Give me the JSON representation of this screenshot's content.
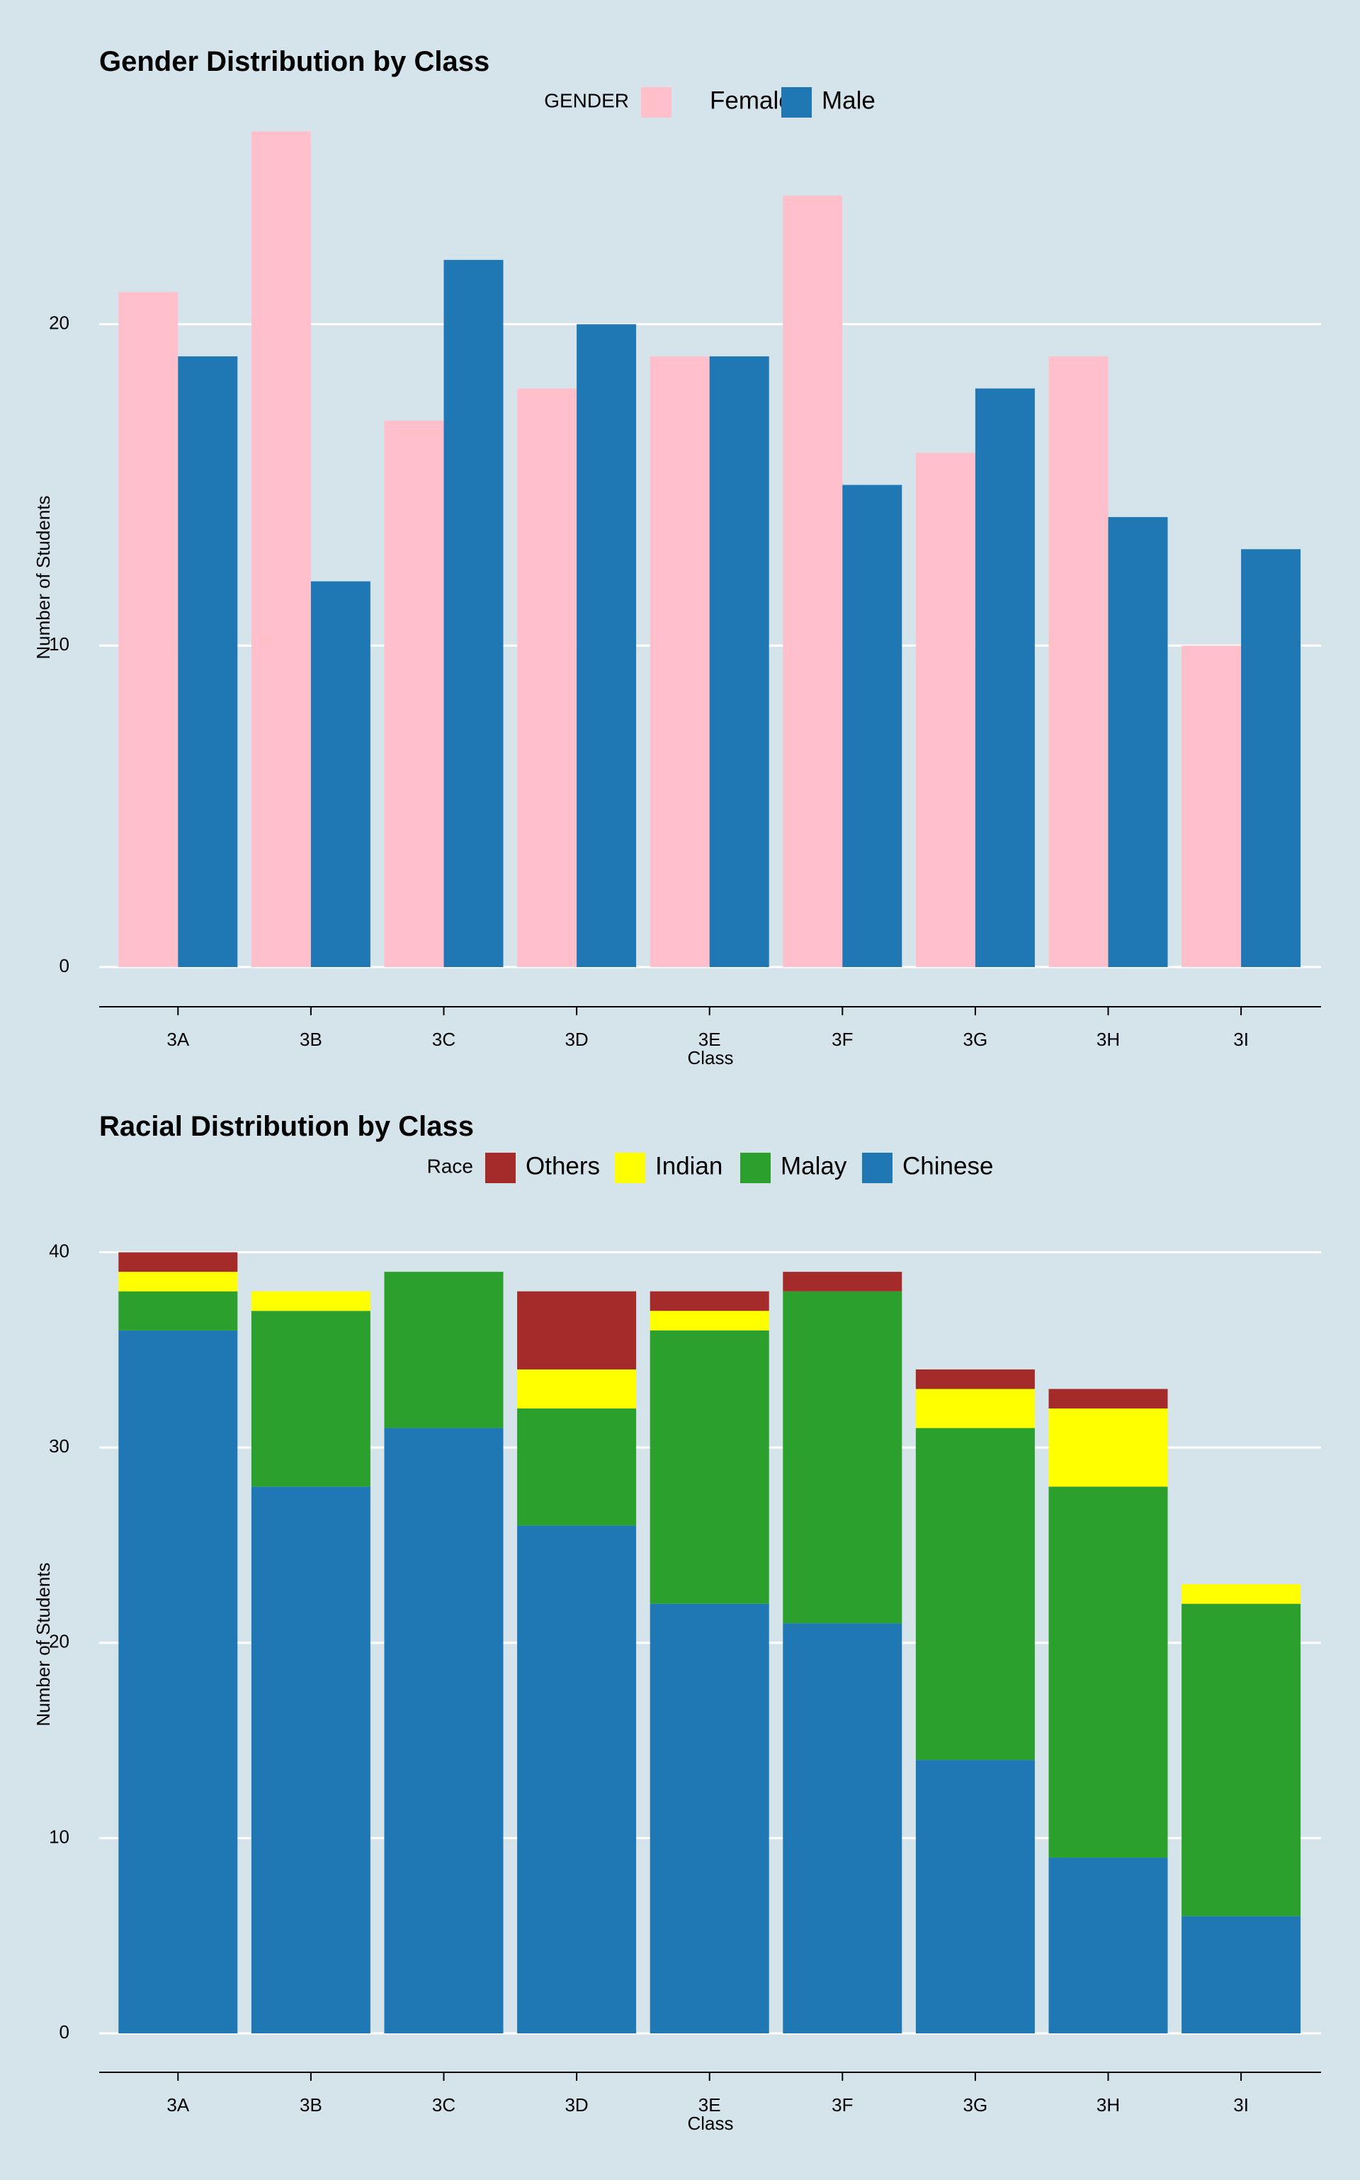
{
  "palette": {
    "background": "#d5e4eb",
    "grid": "#ffffff",
    "axis": "#000000",
    "female": "#ffc0cb",
    "male": "#1f77b4",
    "others": "#a52a2a",
    "indian": "#ffff00",
    "malay": "#2ca02c",
    "chinese": "#1f77b4"
  },
  "chart_data": [
    {
      "type": "bar",
      "barmode": "grouped",
      "title": "Gender Distribution by Class",
      "xlabel": "Class",
      "ylabel": "Number of Students",
      "legend_title": "GENDER",
      "legend_position": "top",
      "grid": "horizontal",
      "categories": [
        "3A",
        "3B",
        "3C",
        "3D",
        "3E",
        "3F",
        "3G",
        "3H",
        "3I"
      ],
      "ylim": [
        0,
        27
      ],
      "yticks": [
        0,
        10,
        20
      ],
      "series": [
        {
          "name": "Female",
          "color": "#ffc0cb",
          "values": [
            21,
            26,
            17,
            18,
            19,
            24,
            16,
            19,
            10
          ]
        },
        {
          "name": "Male",
          "color": "#1f77b4",
          "values": [
            19,
            12,
            22,
            20,
            19,
            15,
            18,
            14,
            13
          ]
        }
      ]
    },
    {
      "type": "bar",
      "barmode": "stacked",
      "title": "Racial Distribution by Class",
      "xlabel": "Class",
      "ylabel": "Number of Students",
      "legend_title": "Race",
      "legend_position": "top",
      "grid": "horizontal",
      "categories": [
        "3A",
        "3B",
        "3C",
        "3D",
        "3E",
        "3F",
        "3G",
        "3H",
        "3I"
      ],
      "ylim": [
        0,
        41
      ],
      "yticks": [
        0,
        10,
        20,
        30,
        40
      ],
      "legend_order": [
        "Others",
        "Indian",
        "Malay",
        "Chinese"
      ],
      "series": [
        {
          "name": "Chinese",
          "color": "#1f77b4",
          "values": [
            36,
            28,
            31,
            26,
            22,
            21,
            14,
            9,
            6
          ]
        },
        {
          "name": "Malay",
          "color": "#2ca02c",
          "values": [
            2,
            9,
            8,
            6,
            14,
            17,
            17,
            19,
            16
          ]
        },
        {
          "name": "Indian",
          "color": "#ffff00",
          "values": [
            1,
            1,
            0,
            2,
            1,
            0,
            2,
            4,
            1
          ]
        },
        {
          "name": "Others",
          "color": "#a52a2a",
          "values": [
            1,
            0,
            0,
            4,
            1,
            1,
            1,
            1,
            0
          ]
        }
      ]
    }
  ]
}
